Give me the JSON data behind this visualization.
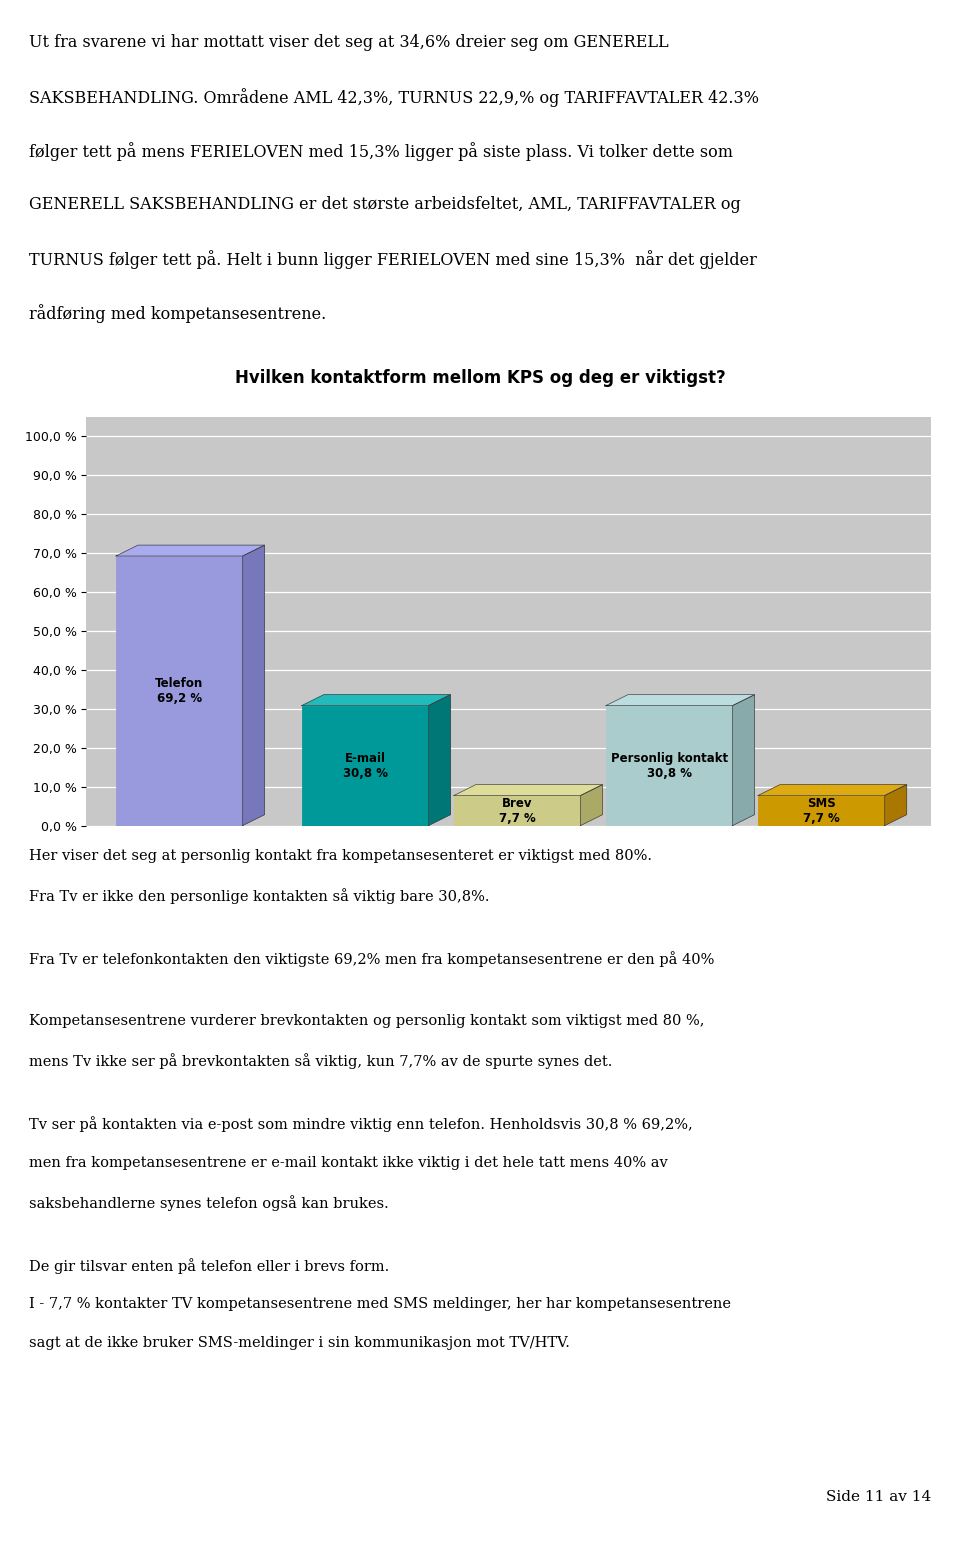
{
  "title": "Hvilken kontaktform mellom KPS og deg er viktigst?",
  "labels": [
    "Telefon",
    "E-mail",
    "Brev",
    "Personlig kontakt",
    "SMS"
  ],
  "label_values": [
    "69,2 %",
    "30,8 %",
    "7,7 %",
    "30,8 %",
    "7,7 %"
  ],
  "values": [
    69.2,
    30.8,
    7.7,
    30.8,
    7.7
  ],
  "bar_colors": [
    "#9999dd",
    "#009999",
    "#cccc88",
    "#aacccc",
    "#cc9900"
  ],
  "bar_top_colors": [
    "#aaaaee",
    "#22bbbb",
    "#dddd99",
    "#bbdddd",
    "#ddaa11"
  ],
  "bar_right_colors": [
    "#7777bb",
    "#007777",
    "#aaaa66",
    "#88aaaa",
    "#aa7700"
  ],
  "yticks": [
    0.0,
    10.0,
    20.0,
    30.0,
    40.0,
    50.0,
    60.0,
    70.0,
    80.0,
    90.0,
    100.0
  ],
  "ylim": [
    0,
    105
  ],
  "background_color": "#ffffff",
  "plot_bg_color": "#c8c8c8",
  "grid_color": "#ffffff",
  "title_fontsize": 12,
  "tick_fontsize": 9,
  "intro_lines": [
    "Ut fra svarene vi har mottatt viser det seg at 34,6% dreier seg om GENERELL",
    "SAKSBEHANDLING. Områdene AML 42,3%, TURNUS 22,9,% og TARIFFAVTALER 42.3%",
    "følger tett på mens FERIELOVEN med 15,3% ligger på siste plass. Vi tolker dette som",
    "GENERELL SAKSBEHANDLING er det største arbeidsfeltet, AML, TARIFFAVTALER og",
    "TURNUS følger tett på. Helt i bunn ligger FERIELOVEN med sine 15,3%  når det gjelder",
    "rådføring med kompetansesentrene."
  ],
  "intro_italic_words": [
    "GENERELL",
    "SAKSBEHANDLING",
    "AML",
    "TURNUS",
    "TARIFFAVTALER",
    "FERIELOVEN"
  ],
  "bottom_paragraphs": [
    "Her viser det seg at personlig kontakt fra kompetansesenteret er viktigst med 80%.\nFra Tv er ikke den personlige kontakten så viktig bare 30,8%.",
    "Fra Tv er telefonkontakten den viktigste 69,2% men fra kompetansesentrene er den på 40%",
    "Kompetansesentrene vurderer brevkontakten og personlig kontakt som viktigst med 80 %,\nmens Tv ikke ser på brevkontakten så viktig, kun 7,7% av de spurte synes det.",
    "Tv ser på kontakten via e-post som mindre viktig enn telefon. Henholdsvis 30,8 % 69,2%,\nmen fra kompetansesentrene er e-mail kontakt ikke viktig i det hele tatt mens 40% av\nsaksbehandlerne synes telefon også kan brukes.",
    "De gir tilsvar enten på telefon eller i brevs form.\nI - 7,7 % kontakter TV kompetansesentrene med SMS meldinger, her har kompetansesentrene\nsagt at de ikke bruker SMS-meldinger i sin kommunikasjon mot TV/HTV."
  ],
  "page_text": "Side 11 av 14"
}
